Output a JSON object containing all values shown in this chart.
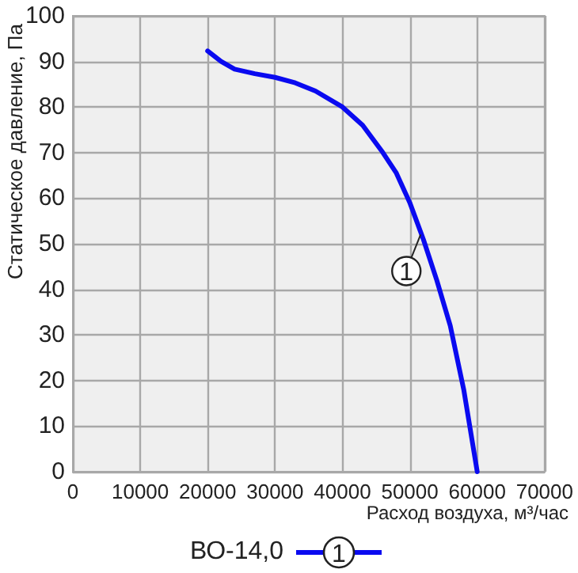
{
  "chart_data": {
    "type": "line",
    "xlabel": "Расход воздуха, м³/час",
    "ylabel": "Статическое давление, Па",
    "x": [
      20000,
      22000,
      24000,
      27000,
      30000,
      33000,
      36000,
      40000,
      43000,
      46000,
      48000,
      50000,
      52000,
      54000,
      56000,
      58000,
      60000
    ],
    "series": [
      {
        "name": "ВО-14,0",
        "color": "#0a0af0",
        "values": [
          92.3,
          90,
          88.3,
          87.3,
          86.5,
          85.3,
          83.5,
          80,
          76,
          70,
          65.5,
          59,
          51,
          42,
          32,
          18,
          0
        ]
      }
    ],
    "xlim": [
      0,
      70000
    ],
    "xticks": [
      0,
      10000,
      20000,
      30000,
      40000,
      50000,
      60000,
      70000
    ],
    "ylim": [
      0,
      100
    ],
    "yticks": [
      0,
      10,
      20,
      30,
      40,
      50,
      60,
      70,
      80,
      90,
      100
    ],
    "annotations": [
      {
        "text": "1",
        "x": 51600,
        "y": 52
      }
    ],
    "grid": true,
    "legend": "bottom",
    "marker": "none",
    "line_style": "solid"
  }
}
